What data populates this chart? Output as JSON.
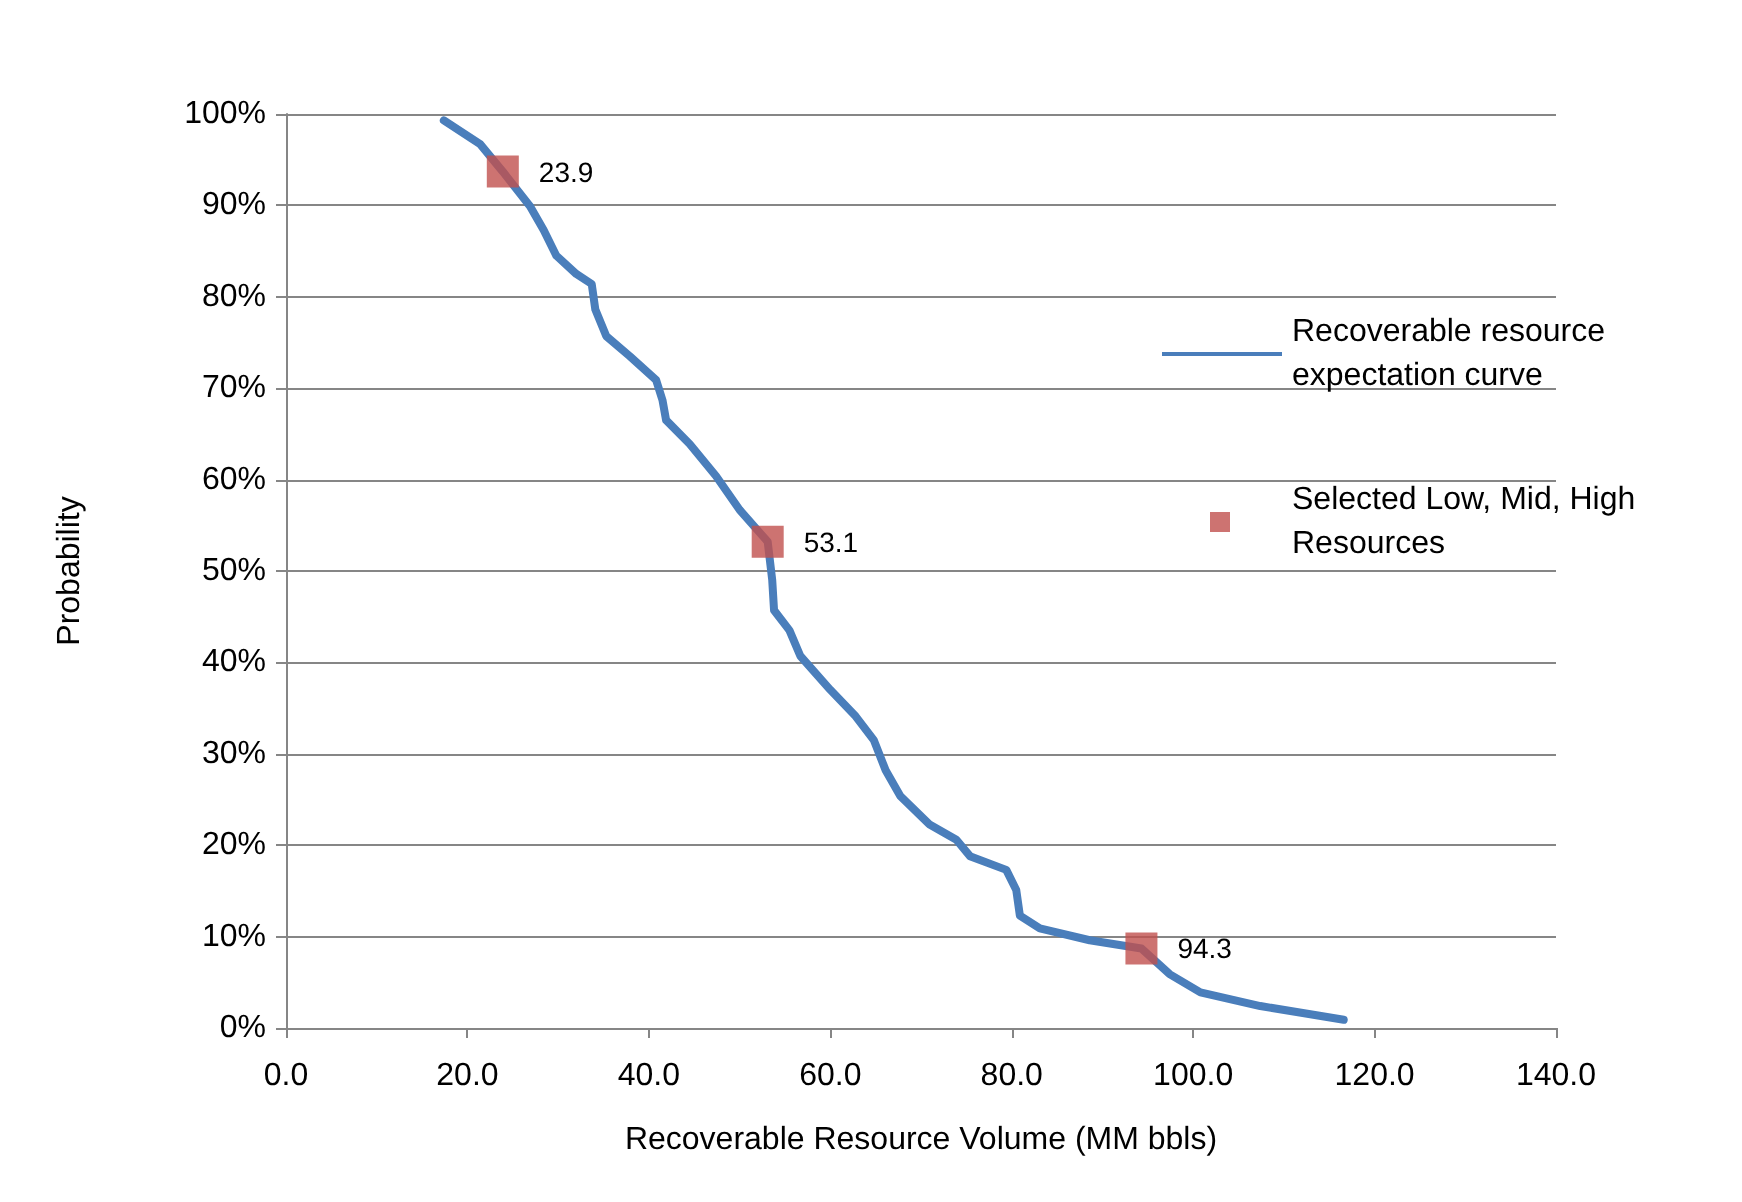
{
  "chart_data": {
    "type": "line",
    "xlabel": "Recoverable Resource Volume (MM bbls)",
    "ylabel": "Probability",
    "xlim": [
      0,
      140
    ],
    "xticks": [
      {
        "value": 0,
        "label": "0.0"
      },
      {
        "value": 20,
        "label": "20.0"
      },
      {
        "value": 40,
        "label": "40.0"
      },
      {
        "value": 60,
        "label": "60.0"
      },
      {
        "value": 80,
        "label": "80.0"
      },
      {
        "value": 100,
        "label": "100.0"
      },
      {
        "value": 120,
        "label": "120.0"
      },
      {
        "value": 140,
        "label": "140.0"
      }
    ],
    "ylim": [
      0,
      100
    ],
    "yticks": [
      {
        "value": 0,
        "label": "0%"
      },
      {
        "value": 10,
        "label": "10%"
      },
      {
        "value": 20,
        "label": "20%"
      },
      {
        "value": 30,
        "label": "30%"
      },
      {
        "value": 40,
        "label": "40%"
      },
      {
        "value": 50,
        "label": "50%"
      },
      {
        "value": 60,
        "label": "60%"
      },
      {
        "value": 70,
        "label": "70%"
      },
      {
        "value": 80,
        "label": "80%"
      },
      {
        "value": 90,
        "label": "90%"
      },
      {
        "value": 100,
        "label": "100%"
      }
    ],
    "grid": "y",
    "legend": "right",
    "series": [
      {
        "name": "Recoverable resource expectation curve",
        "color": "#4a7ebb",
        "marker": "none",
        "line_style": "solid",
        "x": [
          17.4,
          21.4,
          23.9,
          26.9,
          28.4,
          29.8,
          32.0,
          33.7,
          34.1,
          35.3,
          37.9,
          40.8,
          41.5,
          41.9,
          44.5,
          47.4,
          50.0,
          53.1,
          53.6,
          53.8,
          55.5,
          56.7,
          60.0,
          62.8,
          64.8,
          66.1,
          67.7,
          70.9,
          73.9,
          75.4,
          79.4,
          80.5,
          80.9,
          83.1,
          88.6,
          94.3,
          97.4,
          100.8,
          107.4,
          116.6
        ],
        "values": [
          99.3,
          96.7,
          93.7,
          89.9,
          87.3,
          84.5,
          82.5,
          81.4,
          78.6,
          75.7,
          73.5,
          70.9,
          68.7,
          66.5,
          63.9,
          60.4,
          56.7,
          53.2,
          49.0,
          45.7,
          43.5,
          40.7,
          37.0,
          34.1,
          31.5,
          28.2,
          25.4,
          22.3,
          20.6,
          18.8,
          17.3,
          15.1,
          12.3,
          10.9,
          9.6,
          8.7,
          5.9,
          3.9,
          2.4,
          0.9
        ]
      },
      {
        "name": "Selected Low, Mid, High Resources",
        "type": "scatter",
        "color": "#c0504d",
        "marker": "square",
        "x": [
          23.9,
          53.1,
          94.3
        ],
        "values": [
          93.7,
          53.2,
          8.7
        ]
      }
    ],
    "annotations": [
      {
        "text": "23.9",
        "x": 23.9,
        "y": 93.7
      },
      {
        "text": "53.1",
        "x": 53.1,
        "y": 53.2
      },
      {
        "text": "94.3",
        "x": 94.3,
        "y": 8.7
      }
    ]
  }
}
